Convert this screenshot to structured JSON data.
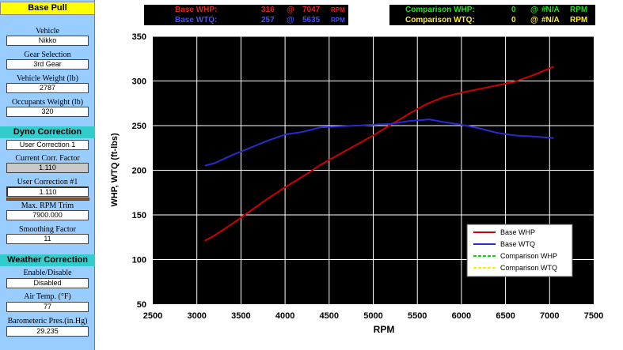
{
  "sidebar": {
    "base_pull": {
      "title": "Base Pull",
      "vehicle_label": "Vehicle",
      "vehicle_value": "Nikko",
      "gear_label": "Gear Selection",
      "gear_value": "3rd Gear",
      "weight_label": "Vehicle Weight (lb)",
      "weight_value": "2787",
      "occupants_label": "Occupants Weight (lb)",
      "occupants_value": "320"
    },
    "dyno": {
      "title": "Dyno Correction",
      "correction_value": "User Correction 1",
      "current_factor_label": "Current Corr. Factor",
      "current_factor_value": "1.110",
      "user_corr_label": "User Correction #1",
      "user_corr_value": "1.110",
      "max_rpm_label": "Max. RPM Trim",
      "max_rpm_value": "7900.000",
      "smoothing_label": "Smoothing Factor",
      "smoothing_value": "11"
    },
    "weather": {
      "title": "Weather Correction",
      "enable_label": "Enable/Disable",
      "enable_value": "Disabled",
      "air_temp_label": "Air Temp. (°F)",
      "air_temp_value": "77",
      "baro_label": "Barometeric Pres.(in.Hg)",
      "baro_value": "29.235"
    }
  },
  "readouts": {
    "base": {
      "whp_label": "Base WHP:",
      "whp_value": "316",
      "whp_at": "@",
      "whp_rpm": "7047",
      "whp_unit": "RPM",
      "wtq_label": "Base WTQ:",
      "wtq_value": "257",
      "wtq_at": "@",
      "wtq_rpm": "5635",
      "wtq_unit": "RPM"
    },
    "comparison": {
      "whp_label": "Comparison WHP:",
      "whp_value": "0",
      "whp_at": "@",
      "whp_rpm": "#N/A",
      "whp_unit": "RPM",
      "wtq_label": "Comparison WTQ:",
      "wtq_value": "0",
      "wtq_at": "@",
      "wtq_rpm": "#N/A",
      "wtq_unit": "RPM"
    }
  },
  "colors": {
    "sidebar_bg": "#99ccff",
    "plot_bg": "#000000",
    "grid": "#ffffff",
    "whp": "#cc0000",
    "wtq": "#2a2ad0",
    "comp_whp": "#00dd00",
    "comp_wtq": "#ffee00"
  },
  "chart_data": {
    "type": "line",
    "title": "",
    "xlabel": "RPM",
    "ylabel": "WHP, WTQ (ft-lbs)",
    "xlim": [
      2500,
      7500
    ],
    "ylim": [
      50,
      350
    ],
    "xticks": [
      2500,
      3000,
      3500,
      4000,
      4500,
      5000,
      5500,
      6000,
      6500,
      7000,
      7500
    ],
    "yticks": [
      50,
      100,
      150,
      200,
      250,
      300,
      350
    ],
    "grid": true,
    "legend_position": "bottom-right",
    "series": [
      {
        "name": "Base WHP",
        "color": "#cc0000",
        "x": [
          3090,
          3200,
          3400,
          3600,
          3800,
          4000,
          4200,
          4400,
          4600,
          4800,
          5000,
          5200,
          5400,
          5600,
          5800,
          6000,
          6200,
          6400,
          6600,
          6800,
          7047
        ],
        "y": [
          121,
          127,
          140,
          154,
          168,
          181,
          193,
          206,
          217,
          228,
          239,
          251,
          263,
          274,
          282,
          287,
          291,
          295,
          299,
          306,
          316
        ]
      },
      {
        "name": "Base WTQ",
        "color": "#2a2ad0",
        "x": [
          3090,
          3200,
          3400,
          3600,
          3800,
          4000,
          4200,
          4400,
          4600,
          4800,
          5000,
          5200,
          5400,
          5635,
          5800,
          6000,
          6200,
          6400,
          6600,
          6800,
          7047
        ],
        "y": [
          205,
          208,
          217,
          225,
          233,
          240,
          243,
          248,
          249,
          250,
          251,
          252,
          255,
          257,
          254,
          251,
          247,
          242,
          239,
          238,
          236
        ]
      },
      {
        "name": "Comparison WHP",
        "color": "#00dd00",
        "x": [],
        "y": []
      },
      {
        "name": "Comparison WTQ",
        "color": "#ffee00",
        "x": [],
        "y": []
      }
    ]
  }
}
